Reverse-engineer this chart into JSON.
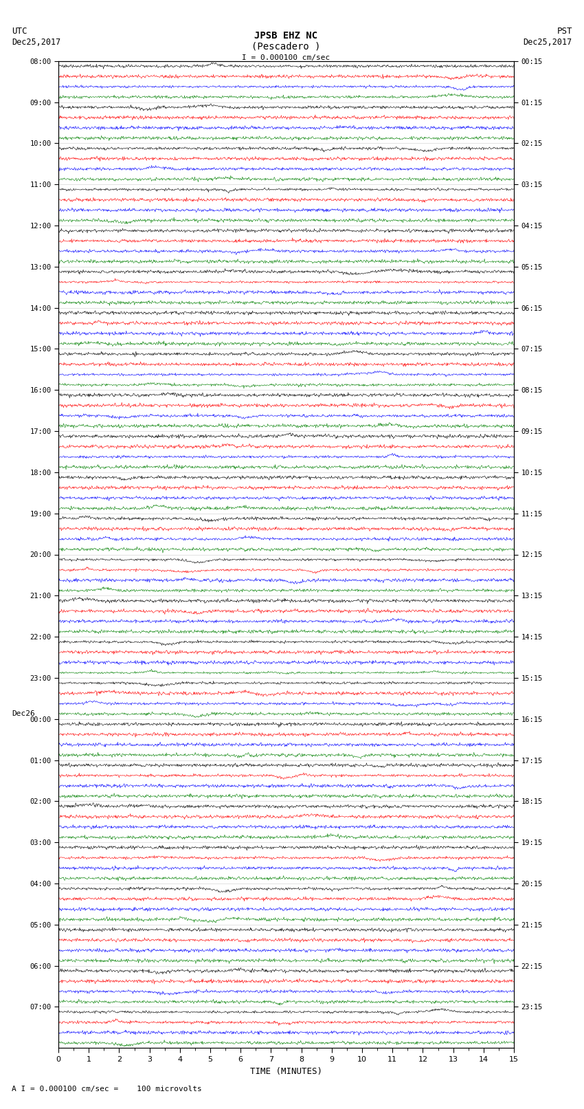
{
  "title_line1": "JPSB EHZ NC",
  "title_line2": "(Pescadero )",
  "scale_text": "I = 0.000100 cm/sec",
  "footer_text": "A I = 0.000100 cm/sec =    100 microvolts",
  "utc_label": "UTC",
  "utc_date": "Dec25,2017",
  "pst_label": "PST",
  "pst_date": "Dec25,2017",
  "dec26_label": "Dec26",
  "xlabel": "TIME (MINUTES)",
  "left_times": [
    "08:00",
    "09:00",
    "10:00",
    "11:00",
    "12:00",
    "13:00",
    "14:00",
    "15:00",
    "16:00",
    "17:00",
    "18:00",
    "19:00",
    "20:00",
    "21:00",
    "22:00",
    "23:00",
    "00:00",
    "01:00",
    "02:00",
    "03:00",
    "04:00",
    "05:00",
    "06:00",
    "07:00"
  ],
  "right_times": [
    "00:15",
    "01:15",
    "02:15",
    "03:15",
    "04:15",
    "05:15",
    "06:15",
    "07:15",
    "08:15",
    "09:15",
    "10:15",
    "11:15",
    "12:15",
    "13:15",
    "14:15",
    "15:15",
    "16:15",
    "17:15",
    "18:15",
    "19:15",
    "20:15",
    "21:15",
    "22:15",
    "23:15"
  ],
  "n_rows": 96,
  "n_samples": 900,
  "colors": [
    "black",
    "red",
    "blue",
    "green"
  ],
  "trace_amplitude": 0.35,
  "noise_base": 0.08,
  "bg_color": "white",
  "axes_color": "black",
  "grid_color": "#cccccc",
  "font_family": "monospace",
  "figsize": [
    8.5,
    16.13
  ],
  "dpi": 100
}
